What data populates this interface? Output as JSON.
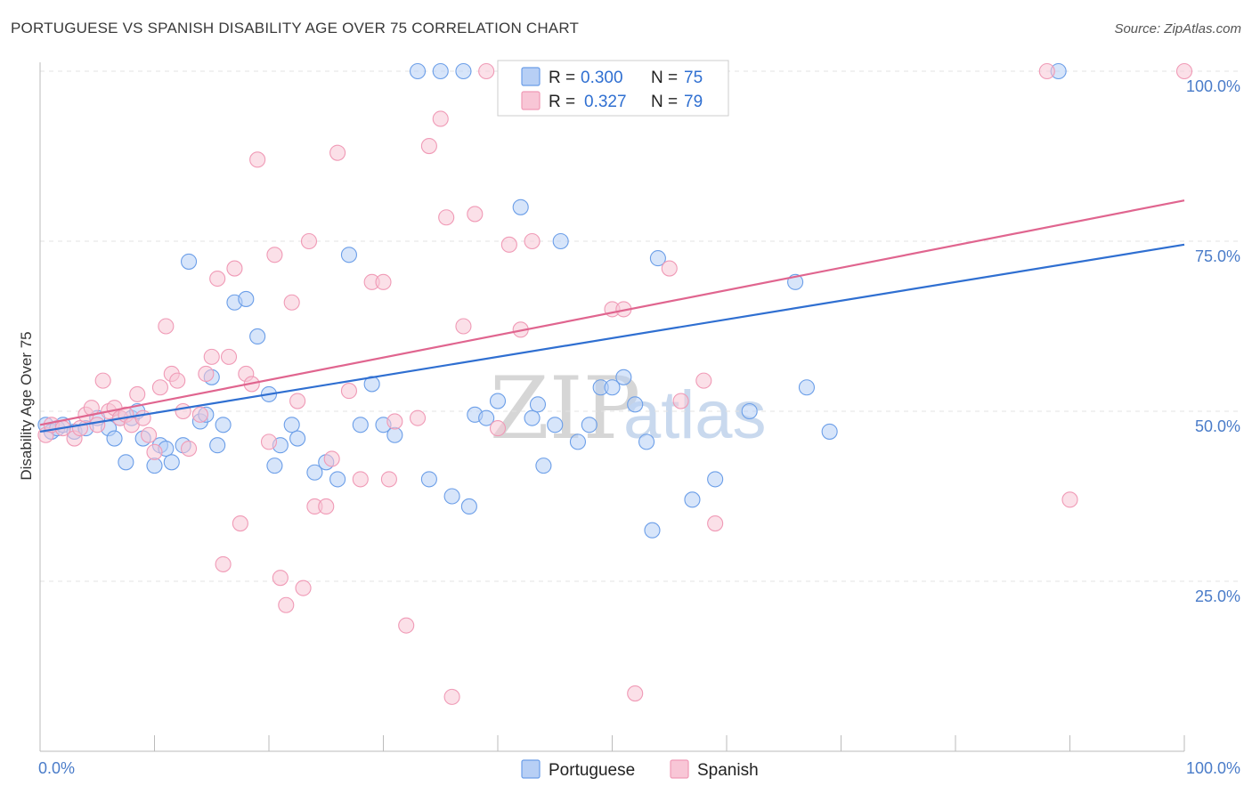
{
  "title": "PORTUGUESE VS SPANISH DISABILITY AGE OVER 75 CORRELATION CHART",
  "source": "Source: ZipAtlas.com",
  "watermark": {
    "zip": "ZIP",
    "atlas": "atlas"
  },
  "chart_data": {
    "type": "scatter",
    "xlabel": "",
    "ylabel": "Disability Age Over 75",
    "xlim": [
      0,
      100
    ],
    "ylim": [
      0,
      100
    ],
    "x_tick_labels": [
      "0.0%",
      "100.0%"
    ],
    "y_ticks": [
      25,
      50,
      75,
      100
    ],
    "y_tick_labels": [
      "25.0%",
      "50.0%",
      "75.0%",
      "100.0%"
    ],
    "legend": {
      "entries": [
        {
          "r_label": "R =",
          "r_value": "0.300",
          "n_label": "N =",
          "n_value": "75"
        },
        {
          "r_label": "R =",
          "r_value": "0.327",
          "n_label": "N =",
          "n_value": "79"
        }
      ]
    },
    "series": [
      {
        "name": "Portuguese",
        "color": "#6b9ee8",
        "fill": "#b7cff5",
        "line_color": "#2f6fd1",
        "trend": {
          "x0": 0,
          "y0": 47.0,
          "x1": 100,
          "y1": 74.5
        },
        "points": [
          [
            0.5,
            48
          ],
          [
            1,
            47
          ],
          [
            1.5,
            47.5
          ],
          [
            2,
            48
          ],
          [
            3,
            47
          ],
          [
            4,
            47.5
          ],
          [
            5,
            49
          ],
          [
            6,
            47.5
          ],
          [
            7,
            49
          ],
          [
            6.5,
            46
          ],
          [
            8,
            49
          ],
          [
            8.5,
            50
          ],
          [
            9,
            46
          ],
          [
            7.5,
            42.5
          ],
          [
            10,
            42
          ],
          [
            10.5,
            45
          ],
          [
            11,
            44.5
          ],
          [
            11.5,
            42.5
          ],
          [
            12.5,
            45
          ],
          [
            13,
            72
          ],
          [
            14,
            48.5
          ],
          [
            14.5,
            49.5
          ],
          [
            15,
            55
          ],
          [
            15.5,
            45
          ],
          [
            16,
            48
          ],
          [
            17,
            66
          ],
          [
            18,
            66.5
          ],
          [
            19,
            61
          ],
          [
            20,
            52.5
          ],
          [
            20.5,
            42
          ],
          [
            21,
            45
          ],
          [
            22,
            48
          ],
          [
            22.5,
            46
          ],
          [
            24,
            41
          ],
          [
            25,
            42.5
          ],
          [
            26,
            40
          ],
          [
            27,
            73
          ],
          [
            28,
            48
          ],
          [
            29,
            54
          ],
          [
            30,
            48
          ],
          [
            31,
            46.5
          ],
          [
            33,
            100
          ],
          [
            34,
            40
          ],
          [
            35,
            100
          ],
          [
            36,
            37.5
          ],
          [
            37,
            100
          ],
          [
            37.5,
            36
          ],
          [
            38,
            49.5
          ],
          [
            39,
            49
          ],
          [
            40,
            51.5
          ],
          [
            42,
            80
          ],
          [
            43,
            49
          ],
          [
            43.5,
            51
          ],
          [
            44,
            42
          ],
          [
            45,
            48
          ],
          [
            45.5,
            75
          ],
          [
            47,
            45.5
          ],
          [
            48,
            48
          ],
          [
            49,
            53.5
          ],
          [
            50,
            53.5
          ],
          [
            51,
            55
          ],
          [
            52,
            51
          ],
          [
            53,
            45.5
          ],
          [
            53.5,
            32.5
          ],
          [
            54,
            72.5
          ],
          [
            57,
            37
          ],
          [
            59,
            40
          ],
          [
            62,
            50
          ],
          [
            66,
            69
          ],
          [
            67,
            53.5
          ],
          [
            69,
            47
          ],
          [
            89,
            100
          ]
        ]
      },
      {
        "name": "Spanish",
        "color": "#f09ab6",
        "fill": "#f8c6d6",
        "line_color": "#e0658f",
        "trend": {
          "x0": 0,
          "y0": 48.0,
          "x1": 100,
          "y1": 81.0
        },
        "points": [
          [
            0.5,
            46.5
          ],
          [
            1,
            48
          ],
          [
            2,
            47.5
          ],
          [
            3,
            46
          ],
          [
            3.5,
            47.5
          ],
          [
            4,
            49.5
          ],
          [
            4.5,
            50.5
          ],
          [
            5,
            48
          ],
          [
            5.5,
            54.5
          ],
          [
            6,
            50
          ],
          [
            6.5,
            50.5
          ],
          [
            7,
            49
          ],
          [
            7.5,
            49.5
          ],
          [
            8,
            48
          ],
          [
            8.5,
            52.5
          ],
          [
            9,
            49
          ],
          [
            9.5,
            46.5
          ],
          [
            10,
            44
          ],
          [
            10.5,
            53.5
          ],
          [
            11,
            62.5
          ],
          [
            11.5,
            55.5
          ],
          [
            12,
            54.5
          ],
          [
            12.5,
            50
          ],
          [
            13,
            44.5
          ],
          [
            14,
            49.5
          ],
          [
            14.5,
            55.5
          ],
          [
            15,
            58
          ],
          [
            15.5,
            69.5
          ],
          [
            16,
            27.5
          ],
          [
            16.5,
            58
          ],
          [
            17,
            71
          ],
          [
            17.5,
            33.5
          ],
          [
            18,
            55.5
          ],
          [
            18.5,
            54
          ],
          [
            19,
            87
          ],
          [
            20,
            45.5
          ],
          [
            20.5,
            73
          ],
          [
            21,
            25.5
          ],
          [
            21.5,
            21.5
          ],
          [
            22,
            66
          ],
          [
            22.5,
            51.5
          ],
          [
            23,
            24
          ],
          [
            23.5,
            75
          ],
          [
            24,
            36
          ],
          [
            25,
            36
          ],
          [
            25.5,
            43
          ],
          [
            26,
            88
          ],
          [
            27,
            53
          ],
          [
            28,
            40
          ],
          [
            29,
            69
          ],
          [
            30,
            69
          ],
          [
            30.5,
            40
          ],
          [
            31,
            48.5
          ],
          [
            32,
            18.5
          ],
          [
            33,
            49
          ],
          [
            34,
            89
          ],
          [
            35,
            93
          ],
          [
            35.5,
            78.5
          ],
          [
            36,
            8
          ],
          [
            37,
            62.5
          ],
          [
            38,
            79
          ],
          [
            39,
            100
          ],
          [
            40,
            47.5
          ],
          [
            41,
            74.5
          ],
          [
            42,
            62
          ],
          [
            43,
            75
          ],
          [
            50,
            65
          ],
          [
            51,
            65
          ],
          [
            52,
            8.5
          ],
          [
            55,
            71
          ],
          [
            56,
            51.5
          ],
          [
            58,
            54.5
          ],
          [
            59,
            33.5
          ],
          [
            88,
            100
          ],
          [
            90,
            37
          ],
          [
            100,
            100
          ]
        ]
      }
    ]
  }
}
